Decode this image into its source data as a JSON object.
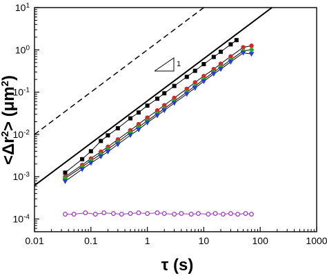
{
  "chart_data": {
    "type": "scatter",
    "x_scale": "log",
    "y_scale": "log",
    "xlim": [
      0.01,
      1000
    ],
    "ylim": [
      5e-05,
      10
    ],
    "grid": false,
    "xlabel": "τ (s)",
    "ylabel": "<Δr²> (μm²)",
    "x_tick_labels": [
      "0.01",
      "0.1",
      "1",
      "10",
      "100",
      "1000"
    ],
    "y_tick_labels": [
      {
        "mant": "10",
        "exp": "-4"
      },
      {
        "mant": "10",
        "exp": "-3"
      },
      {
        "mant": "10",
        "exp": "-2"
      },
      {
        "mant": "10",
        "exp": "-1"
      },
      {
        "mant": "10",
        "exp": "0"
      },
      {
        "mant": "10",
        "exp": "1"
      }
    ],
    "slope_annotation": "1",
    "reference_lines": [
      {
        "style": "solid",
        "color": "#000000",
        "slope": 1,
        "y_at_x1": 0.062
      },
      {
        "style": "dashed",
        "color": "#000000",
        "slope": 1,
        "y_at_x1": 1.0
      }
    ],
    "series": [
      {
        "marker": "square",
        "color": "#000000",
        "line_color": "#000000",
        "points": [
          [
            0.035,
            0.00125
          ],
          [
            0.07,
            0.0026
          ],
          [
            0.1,
            0.004
          ],
          [
            0.15,
            0.007
          ],
          [
            0.2,
            0.0095
          ],
          [
            0.3,
            0.014
          ],
          [
            0.5,
            0.024
          ],
          [
            0.7,
            0.033
          ],
          [
            1,
            0.048
          ],
          [
            1.5,
            0.07
          ],
          [
            2,
            0.094
          ],
          [
            3,
            0.14
          ],
          [
            5,
            0.23
          ],
          [
            7,
            0.32
          ],
          [
            10,
            0.46
          ],
          [
            15,
            0.68
          ],
          [
            20,
            0.9
          ],
          [
            30,
            1.35
          ],
          [
            38,
            1.7
          ]
        ]
      },
      {
        "marker": "circle",
        "color": "#e0211f",
        "line_color": "#000000",
        "points": [
          [
            0.035,
            0.001
          ],
          [
            0.07,
            0.0019
          ],
          [
            0.1,
            0.0027
          ],
          [
            0.15,
            0.0039
          ],
          [
            0.2,
            0.0051
          ],
          [
            0.3,
            0.0076
          ],
          [
            0.5,
            0.0125
          ],
          [
            0.7,
            0.0175
          ],
          [
            1,
            0.025
          ],
          [
            1.5,
            0.037
          ],
          [
            2,
            0.049
          ],
          [
            3,
            0.073
          ],
          [
            5,
            0.12
          ],
          [
            7,
            0.17
          ],
          [
            10,
            0.24
          ],
          [
            15,
            0.35
          ],
          [
            20,
            0.47
          ],
          [
            30,
            0.7
          ],
          [
            50,
            1.15
          ],
          [
            70,
            1.25
          ]
        ]
      },
      {
        "marker": "diamond",
        "color": "#2aa52a",
        "line_color": "#000000",
        "points": [
          [
            0.035,
            0.00092
          ],
          [
            0.07,
            0.0017
          ],
          [
            0.1,
            0.0024
          ],
          [
            0.15,
            0.0034
          ],
          [
            0.2,
            0.0045
          ],
          [
            0.3,
            0.0066
          ],
          [
            0.5,
            0.011
          ],
          [
            0.7,
            0.015
          ],
          [
            1,
            0.021
          ],
          [
            1.5,
            0.031
          ],
          [
            2,
            0.041
          ],
          [
            3,
            0.061
          ],
          [
            5,
            0.1
          ],
          [
            7,
            0.14
          ],
          [
            10,
            0.2
          ],
          [
            15,
            0.3
          ],
          [
            20,
            0.39
          ],
          [
            30,
            0.58
          ],
          [
            50,
            0.95
          ],
          [
            70,
            1.0
          ]
        ]
      },
      {
        "marker": "triangle-down",
        "color": "#1f3fd6",
        "line_color": "#000000",
        "points": [
          [
            0.035,
            0.00078
          ],
          [
            0.07,
            0.0015
          ],
          [
            0.1,
            0.0021
          ],
          [
            0.15,
            0.003
          ],
          [
            0.2,
            0.0039
          ],
          [
            0.3,
            0.0058
          ],
          [
            0.5,
            0.0096
          ],
          [
            0.7,
            0.013
          ],
          [
            1,
            0.019
          ],
          [
            1.5,
            0.028
          ],
          [
            2,
            0.037
          ],
          [
            3,
            0.055
          ],
          [
            5,
            0.09
          ],
          [
            7,
            0.125
          ],
          [
            10,
            0.18
          ],
          [
            15,
            0.27
          ],
          [
            20,
            0.35
          ],
          [
            30,
            0.52
          ],
          [
            50,
            0.85
          ],
          [
            70,
            0.8
          ]
        ]
      },
      {
        "marker": "circle-open",
        "color": "#9b30c8",
        "line_color": "#9b30c8",
        "points": [
          [
            0.035,
            0.00013
          ],
          [
            0.05,
            0.00013
          ],
          [
            0.08,
            0.00014
          ],
          [
            0.12,
            0.00013
          ],
          [
            0.17,
            0.00014
          ],
          [
            0.25,
            0.000135
          ],
          [
            0.35,
            0.00013
          ],
          [
            0.5,
            0.000135
          ],
          [
            0.7,
            0.00014
          ],
          [
            1,
            0.000135
          ],
          [
            1.5,
            0.00014
          ],
          [
            2,
            0.000135
          ],
          [
            3,
            0.00013
          ],
          [
            4,
            0.000135
          ],
          [
            6,
            0.00013
          ],
          [
            8,
            0.000135
          ],
          [
            12,
            0.00013
          ],
          [
            16,
            0.000135
          ],
          [
            22,
            0.00013
          ],
          [
            30,
            0.000135
          ],
          [
            40,
            0.00013
          ],
          [
            55,
            0.000135
          ],
          [
            70,
            0.00013
          ]
        ]
      }
    ]
  }
}
